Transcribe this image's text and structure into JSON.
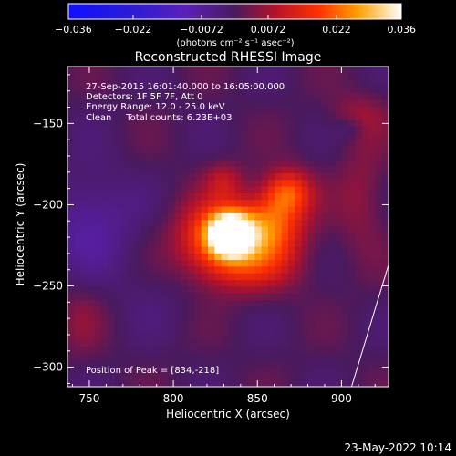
{
  "chart_data": {
    "type": "heatmap",
    "title": "Reconstructed RHESSI Image",
    "xlabel": "Heliocentric X (arcsec)",
    "ylabel": "Heliocentric Y (arcsec)",
    "xlim": [
      737,
      928
    ],
    "ylim": [
      -312,
      -115
    ],
    "x_ticks": [
      750,
      800,
      850,
      900
    ],
    "y_ticks": [
      -150,
      -200,
      -250,
      -300
    ],
    "annotations": [
      "27-Sep-2015 16:01:40.000 to 16:05:00.000",
      "Detectors: 1F 5F 7F, Att 0",
      "Energy Range: 12.0 - 25.0 keV",
      "Clean     Total counts: 6.23E+03"
    ],
    "peak_label": "Position of Peak = [834,-218]",
    "peak": [
      834,
      -218
    ],
    "peak_value": 0.036,
    "colorbar": {
      "range": [
        -0.036,
        0.036
      ],
      "tick_labels": [
        "-0.036",
        "-0.022",
        "-0.0072",
        "0.0072",
        "0.022",
        "0.036"
      ],
      "unit_label": "(photons cm⁻² s⁻¹ asec⁻²)"
    },
    "limb_line": {
      "x": [
        906,
        928
      ],
      "y": [
        -312,
        -237
      ]
    },
    "sources": [
      {
        "x": 834,
        "y": -218,
        "amp": 0.036,
        "sx": 9,
        "sy": 9
      },
      {
        "x": 826,
        "y": -220,
        "amp": 0.02,
        "sx": 17,
        "sy": 16
      },
      {
        "x": 858,
        "y": -213,
        "amp": 0.02,
        "sx": 14,
        "sy": 14
      },
      {
        "x": 868,
        "y": -192,
        "amp": 0.018,
        "sx": 10,
        "sy": 10
      },
      {
        "x": 845,
        "y": -238,
        "amp": 0.011,
        "sx": 22,
        "sy": 12
      },
      {
        "x": 830,
        "y": -185,
        "amp": 0.008,
        "sx": 8,
        "sy": 8
      },
      {
        "x": 750,
        "y": -210,
        "amp": -0.008,
        "sx": 18,
        "sy": 22
      },
      {
        "x": 912,
        "y": -195,
        "amp": 0.006,
        "sx": 10,
        "sy": 24
      },
      {
        "x": 910,
        "y": -145,
        "amp": 0.006,
        "sx": 12,
        "sy": 10
      },
      {
        "x": 745,
        "y": -270,
        "amp": 0.004,
        "sx": 10,
        "sy": 16
      },
      {
        "x": 905,
        "y": -153,
        "amp": -0.005,
        "sx": 6,
        "sy": 5
      },
      {
        "x": 790,
        "y": -250,
        "amp": -0.002,
        "sx": 20,
        "sy": 20
      }
    ]
  },
  "footer": {
    "timestamp": "23-May-2022 10:14"
  }
}
